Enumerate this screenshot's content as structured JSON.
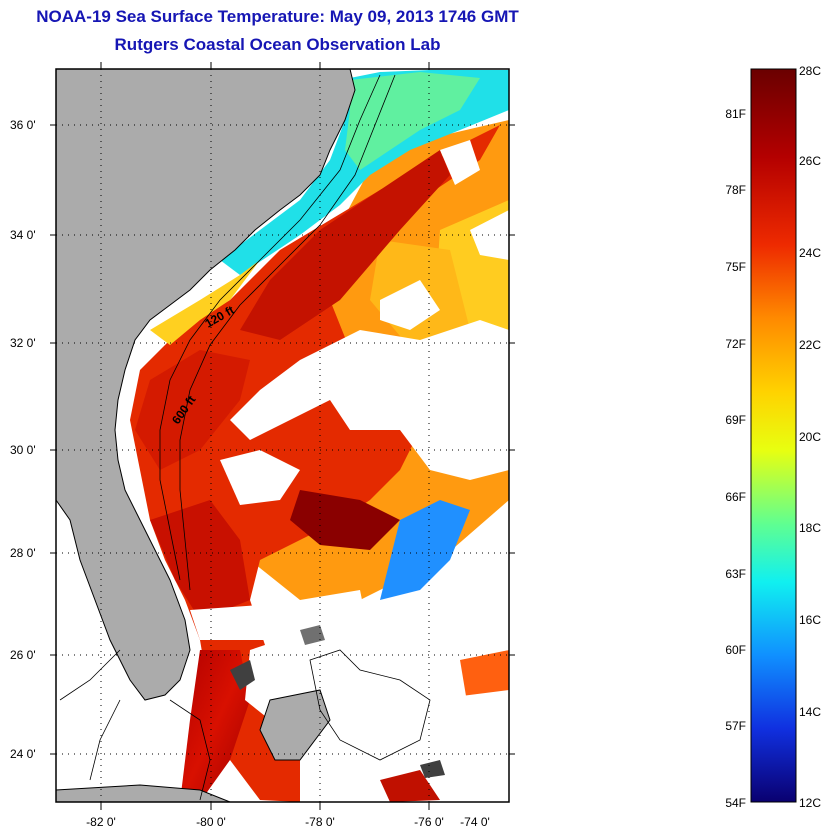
{
  "header": {
    "title": "NOAA-19 Sea Surface Temperature:  May 09, 2013 1746 GMT",
    "subtitle": "Rutgers Coastal Ocean Observation Lab"
  },
  "map": {
    "lat_labels": [
      "36 0'",
      "34 0'",
      "32 0'",
      "30 0'",
      "28 0'",
      "26 0'",
      "24 0'"
    ],
    "lon_labels": [
      "-82 0'",
      "-80 0'",
      "-78 0'",
      "-76 0'",
      "-74 0'"
    ],
    "contours": [
      "120 ft",
      "600 ft"
    ],
    "colors": {
      "land": "#ababab",
      "cloud": "#ffffff",
      "coastline": "#000000"
    }
  },
  "colorbar": {
    "celsius": [
      "28C",
      "26C",
      "24C",
      "22C",
      "20C",
      "18C",
      "16C",
      "14C",
      "12C"
    ],
    "fahrenheit": [
      "81F",
      "78F",
      "75F",
      "72F",
      "69F",
      "66F",
      "63F",
      "60F",
      "57F",
      "54F"
    ]
  }
}
